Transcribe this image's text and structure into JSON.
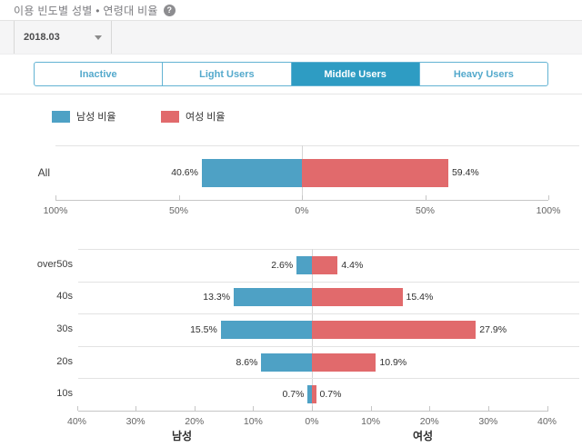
{
  "header": {
    "title": "이용 빈도별 성별 • 연령대 비율",
    "help_label": "?"
  },
  "toolbar": {
    "period": "2018.03"
  },
  "tabs": [
    {
      "id": "inactive",
      "label": "Inactive",
      "selected": false
    },
    {
      "id": "light-users",
      "label": "Light Users",
      "selected": false
    },
    {
      "id": "middle-users",
      "label": "Middle Users",
      "selected": true
    },
    {
      "id": "heavy-users",
      "label": "Heavy Users",
      "selected": false
    }
  ],
  "legend": {
    "items": [
      {
        "label": "남성 비율",
        "color": "#4ea1c5"
      },
      {
        "label": "여성 비율",
        "color": "#e16a6c"
      }
    ]
  },
  "colors": {
    "male": "#4ea1c5",
    "female": "#e16a6c",
    "tab_selected_bg": "#2e9cc3",
    "tab_text": "#54a9cc",
    "tab_border": "#63b3d3",
    "grid_line": "#e3e3e3",
    "axis_line": "#c6c6c6",
    "center_line": "#d6d6d6"
  },
  "chart_data": [
    {
      "type": "bar",
      "name": "overall-gender-chart",
      "orientation": "diverging-horizontal",
      "categories": [
        "All"
      ],
      "series": [
        {
          "name": "남성 비율",
          "side": "left",
          "color": "#4ea1c5",
          "values": [
            40.6
          ]
        },
        {
          "name": "여성 비율",
          "side": "right",
          "color": "#e16a6c",
          "values": [
            59.4
          ]
        }
      ],
      "value_labels": {
        "left": [
          "40.6%"
        ],
        "right": [
          "59.4%"
        ]
      },
      "ticks": [
        "100%",
        "50%",
        "0%",
        "50%",
        "100%"
      ],
      "tick_values": [
        -100,
        -50,
        0,
        50,
        100
      ],
      "xlim": [
        -100,
        100
      ],
      "grid": false,
      "legend_position": "top"
    },
    {
      "type": "bar",
      "name": "age-gender-chart",
      "orientation": "diverging-horizontal",
      "categories": [
        "over50s",
        "40s",
        "30s",
        "20s",
        "10s"
      ],
      "series": [
        {
          "name": "남성 비율",
          "side": "left",
          "color": "#4ea1c5",
          "values": [
            2.6,
            13.3,
            15.5,
            8.6,
            0.7
          ]
        },
        {
          "name": "여성 비율",
          "side": "right",
          "color": "#e16a6c",
          "values": [
            4.4,
            15.4,
            27.9,
            10.9,
            0.7
          ]
        }
      ],
      "value_labels": {
        "left": [
          "2.6%",
          "13.3%",
          "15.5%",
          "8.6%",
          "0.7%"
        ],
        "right": [
          "4.4%",
          "15.4%",
          "27.9%",
          "10.9%",
          "0.7%"
        ]
      },
      "ticks": [
        "40%",
        "30%",
        "20%",
        "10%",
        "0%",
        "10%",
        "20%",
        "30%",
        "40%"
      ],
      "tick_values": [
        -40,
        -30,
        -20,
        -10,
        0,
        10,
        20,
        30,
        40
      ],
      "xlim": [
        -40,
        40
      ],
      "grid": false,
      "axis_group_labels": {
        "left": "남성",
        "right": "여성"
      }
    }
  ]
}
